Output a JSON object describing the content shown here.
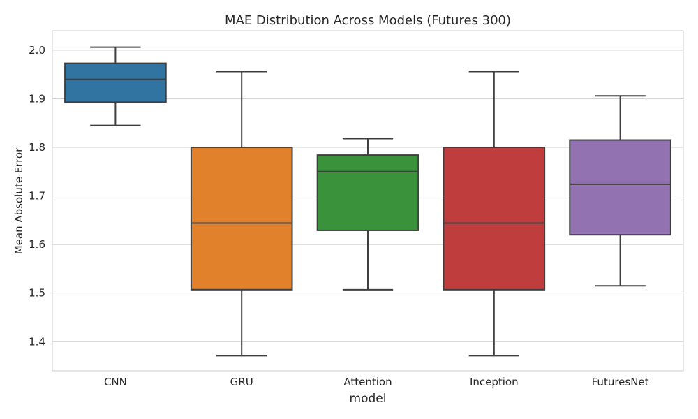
{
  "chart_data": {
    "type": "boxplot",
    "title": "MAE Distribution Across Models (Futures 300)",
    "xlabel": "model",
    "ylabel": "Mean Absolute Error",
    "ylim": [
      1.34,
      2.04
    ],
    "yticks": [
      1.4,
      1.5,
      1.6,
      1.7,
      1.8,
      1.9,
      2.0
    ],
    "ytick_labels": [
      "1.4",
      "1.5",
      "1.6",
      "1.7",
      "1.8",
      "1.9",
      "2.0"
    ],
    "grid": true,
    "categories": [
      "CNN",
      "GRU",
      "Attention",
      "Inception",
      "FuturesNet"
    ],
    "boxes": [
      {
        "name": "CNN",
        "min": 1.845,
        "q1": 1.893,
        "median": 1.94,
        "q3": 1.973,
        "max": 2.006,
        "color": "#3274a1"
      },
      {
        "name": "GRU",
        "min": 1.371,
        "q1": 1.507,
        "median": 1.644,
        "q3": 1.8,
        "max": 1.956,
        "color": "#e1812c"
      },
      {
        "name": "Attention",
        "min": 1.507,
        "q1": 1.629,
        "median": 1.75,
        "q3": 1.784,
        "max": 1.818,
        "color": "#3a923a"
      },
      {
        "name": "Inception",
        "min": 1.371,
        "q1": 1.507,
        "median": 1.644,
        "q3": 1.8,
        "max": 1.956,
        "color": "#c03d3e"
      },
      {
        "name": "FuturesNet",
        "min": 1.515,
        "q1": 1.62,
        "median": 1.724,
        "q3": 1.815,
        "max": 1.906,
        "color": "#9372b2"
      }
    ]
  }
}
